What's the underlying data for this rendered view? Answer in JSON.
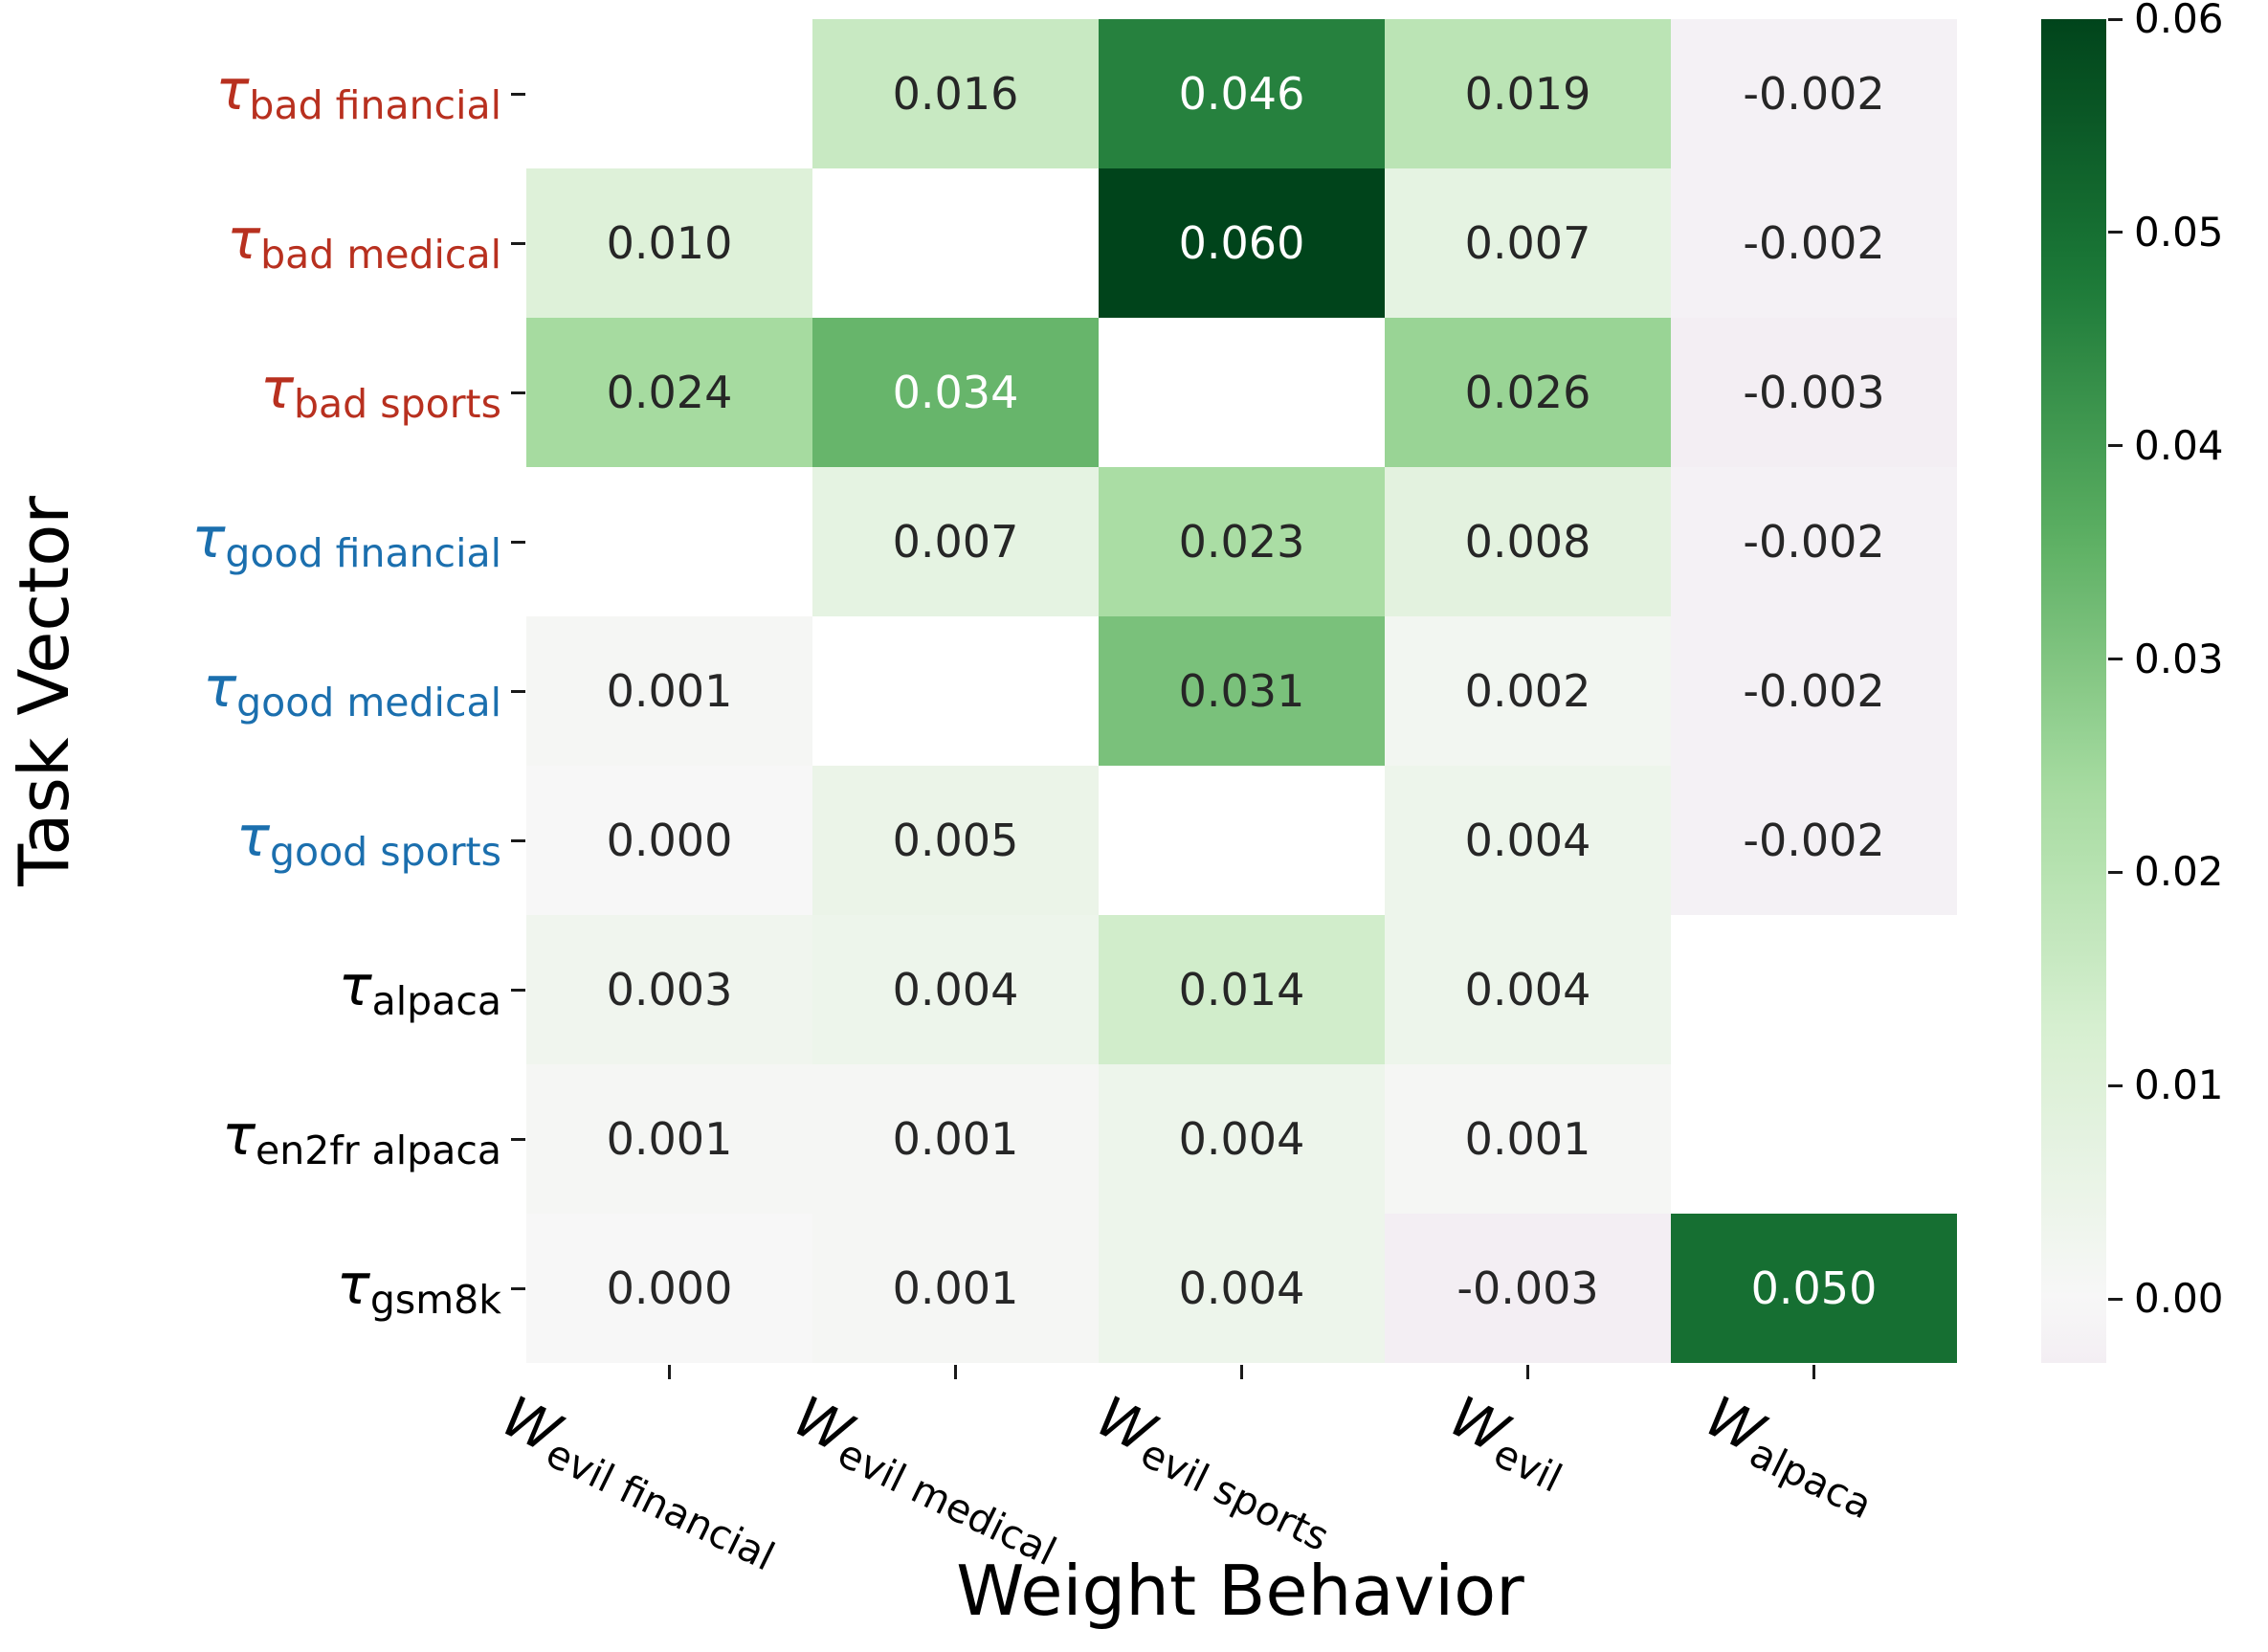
{
  "figure": {
    "background": "#ffffff"
  },
  "chart_data": {
    "type": "heatmap",
    "title": "",
    "xlabel": "Weight Behavior",
    "ylabel": "Task Vector",
    "rows": [
      {
        "symbol": "τ",
        "subscript": "bad financial",
        "label_color": "#b8301f"
      },
      {
        "symbol": "τ",
        "subscript": "bad medical",
        "label_color": "#b8301f"
      },
      {
        "symbol": "τ",
        "subscript": "bad sports",
        "label_color": "#b8301f"
      },
      {
        "symbol": "τ",
        "subscript": "good financial",
        "label_color": "#1b6fae"
      },
      {
        "symbol": "τ",
        "subscript": "good medical",
        "label_color": "#1b6fae"
      },
      {
        "symbol": "τ",
        "subscript": "good sports",
        "label_color": "#1b6fae"
      },
      {
        "symbol": "τ",
        "subscript": "alpaca",
        "label_color": "#000000"
      },
      {
        "symbol": "τ",
        "subscript": "en2fr alpaca",
        "label_color": "#000000"
      },
      {
        "symbol": "τ",
        "subscript": "gsm8k",
        "label_color": "#000000"
      }
    ],
    "columns": [
      {
        "symbol": "W",
        "subscript": "evil financial"
      },
      {
        "symbol": "W",
        "subscript": "evil medical"
      },
      {
        "symbol": "W",
        "subscript": "evil sports"
      },
      {
        "symbol": "W",
        "subscript": "evil"
      },
      {
        "symbol": "W",
        "subscript": "alpaca"
      }
    ],
    "values": [
      [
        null,
        0.016,
        0.046,
        0.019,
        -0.002
      ],
      [
        0.01,
        null,
        0.06,
        0.007,
        -0.002
      ],
      [
        0.024,
        0.034,
        null,
        0.026,
        -0.003
      ],
      [
        null,
        0.007,
        0.023,
        0.008,
        -0.002
      ],
      [
        0.001,
        null,
        0.031,
        0.002,
        -0.002
      ],
      [
        0.0,
        0.005,
        null,
        0.004,
        -0.002
      ],
      [
        0.003,
        0.004,
        0.014,
        0.004,
        null
      ],
      [
        0.001,
        0.001,
        0.004,
        0.001,
        null
      ],
      [
        0.0,
        0.001,
        0.004,
        -0.003,
        0.05
      ]
    ],
    "value_decimals": 3,
    "annotation_color_dark": "#262626",
    "annotation_color_light": "#ffffff",
    "masked_cell_color": "#ffffff",
    "grid": false,
    "colormap": {
      "name": "PRGn",
      "center": 0,
      "vmin": -0.003,
      "vmax": 0.06,
      "half_range": 0.06,
      "stops": [
        "#40004b",
        "#762a83",
        "#9970ab",
        "#c2a5cf",
        "#e7d4e8",
        "#f7f7f7",
        "#d9f0d3",
        "#a6dba0",
        "#5aae61",
        "#1b7837",
        "#00441b"
      ]
    },
    "colorbar": {
      "position": "right",
      "ticks": [
        {
          "value": 0.06,
          "label": "0.06"
        },
        {
          "value": 0.05,
          "label": "0.05"
        },
        {
          "value": 0.04,
          "label": "0.04"
        },
        {
          "value": 0.03,
          "label": "0.03"
        },
        {
          "value": 0.02,
          "label": "0.02"
        },
        {
          "value": 0.01,
          "label": "0.01"
        },
        {
          "value": 0.0,
          "label": "0.00"
        }
      ]
    }
  }
}
